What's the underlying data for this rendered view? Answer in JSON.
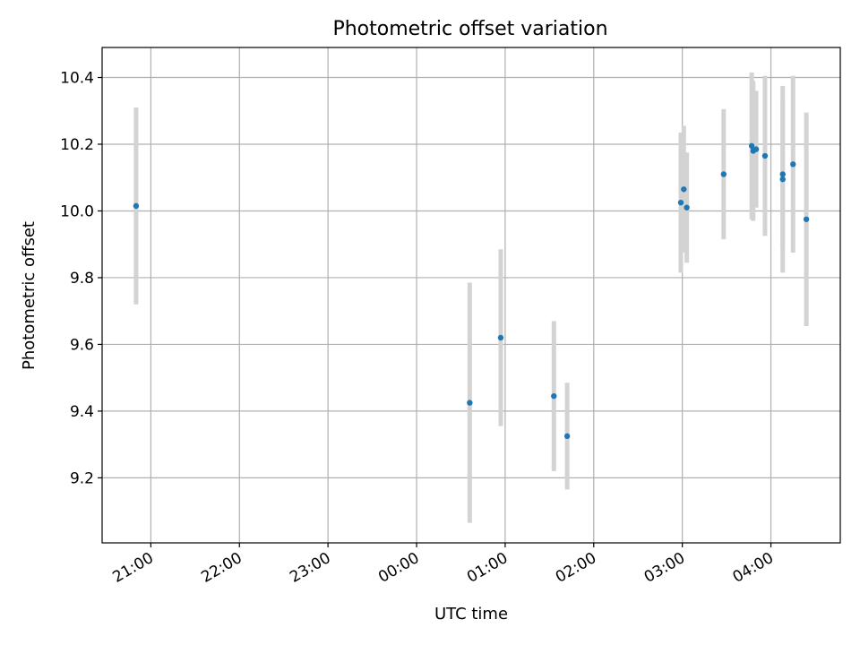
{
  "chart_data": {
    "type": "scatter",
    "title": "Photometric offset variation",
    "xlabel": "UTC time",
    "ylabel": "Photometric offset",
    "x_ticks": [
      "21:00",
      "22:00",
      "23:00",
      "00:00",
      "01:00",
      "02:00",
      "03:00",
      "04:00"
    ],
    "y_ticks": [
      "9.2",
      "9.4",
      "9.6",
      "9.8",
      "10.0",
      "10.2",
      "10.4"
    ],
    "xlim": [
      "20:27",
      "04:47"
    ],
    "ylim": [
      9.005,
      10.49
    ],
    "grid": true,
    "legend": "none",
    "colors": {
      "point": "#1f77b4",
      "errorbar": "#d3d3d3",
      "grid": "#b0b0b0"
    },
    "points": [
      {
        "t": "20:50",
        "y": 10.015,
        "err": 0.295
      },
      {
        "t": "00:36",
        "y": 9.425,
        "err": 0.36
      },
      {
        "t": "00:57",
        "y": 9.62,
        "err": 0.265
      },
      {
        "t": "01:33",
        "y": 9.445,
        "err": 0.225
      },
      {
        "t": "01:42",
        "y": 9.325,
        "err": 0.16
      },
      {
        "t": "02:59",
        "y": 10.025,
        "err": 0.21
      },
      {
        "t": "03:01",
        "y": 10.065,
        "err": 0.19
      },
      {
        "t": "03:03",
        "y": 10.01,
        "err": 0.165
      },
      {
        "t": "03:28",
        "y": 10.11,
        "err": 0.195
      },
      {
        "t": "03:47",
        "y": 10.195,
        "err": 0.22
      },
      {
        "t": "03:48",
        "y": 10.18,
        "err": 0.21
      },
      {
        "t": "03:50",
        "y": 10.185,
        "err": 0.175
      },
      {
        "t": "03:56",
        "y": 10.165,
        "err": 0.24
      },
      {
        "t": "04:08",
        "y": 10.11,
        "err": 0.22
      },
      {
        "t": "04:08",
        "y": 10.095,
        "err": 0.28
      },
      {
        "t": "04:15",
        "y": 10.14,
        "err": 0.265
      },
      {
        "t": "04:24",
        "y": 9.975,
        "err": 0.32
      }
    ]
  }
}
